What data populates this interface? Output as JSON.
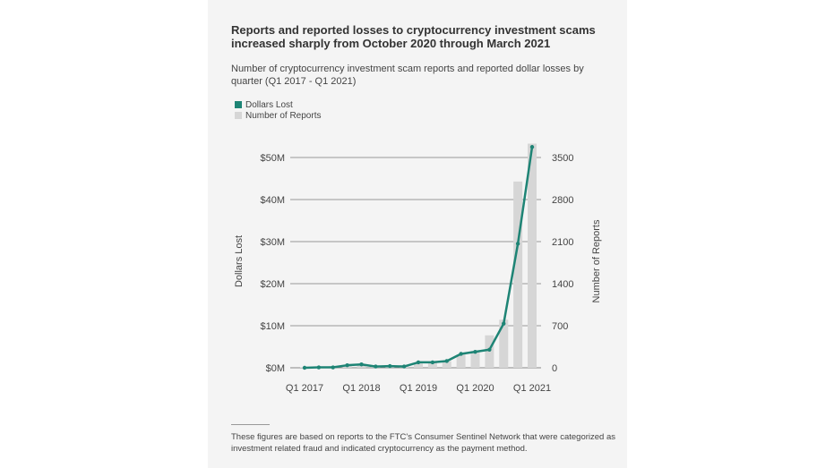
{
  "title": "Reports and reported losses to cryptocurrency investment scams increased sharply from October 2020 through March 2021",
  "subtitle": "Number of cryptocurrency investment scam reports and reported dollar losses by quarter (Q1 2017 - Q1 2021)",
  "footnote": "These figures are based on reports to the FTC's Consumer Sentinel Network that were categorized as investment related fraud and indicated cryptocurrency as the payment method.",
  "colors": {
    "line": "#1e8475",
    "bar": "#d6d6d6",
    "background": "#f4f4f4"
  },
  "chart_data": {
    "type": "bar+line",
    "categories": [
      "Q1 2017",
      "Q2 2017",
      "Q3 2017",
      "Q4 2017",
      "Q1 2018",
      "Q2 2018",
      "Q3 2018",
      "Q4 2018",
      "Q1 2019",
      "Q2 2019",
      "Q3 2019",
      "Q4 2019",
      "Q1 2020",
      "Q2 2020",
      "Q3 2020",
      "Q4 2020",
      "Q1 2021"
    ],
    "x_tick_labels": [
      "Q1 2017",
      "Q1 2018",
      "Q1 2019",
      "Q1 2020",
      "Q1 2021"
    ],
    "series": [
      {
        "name": "Dollars Lost",
        "type": "line",
        "axis": "left",
        "unit": "$M",
        "values": [
          0,
          0.1,
          0.1,
          0.6,
          0.8,
          0.3,
          0.4,
          0.3,
          1.3,
          1.3,
          1.6,
          3.3,
          3.8,
          4.3,
          10.5,
          29.5,
          52.5
        ]
      },
      {
        "name": "Number of Reports",
        "type": "bar",
        "axis": "right",
        "values": [
          10,
          12,
          25,
          40,
          60,
          40,
          35,
          45,
          70,
          90,
          110,
          220,
          280,
          540,
          800,
          3100,
          3730
        ]
      }
    ],
    "ylabel_left": "Dollars Lost",
    "ylabel_right": "Number of Reports",
    "yticks_left": [
      "$0M",
      "$10M",
      "$20M",
      "$30M",
      "$40M",
      "$50M"
    ],
    "yticks_right": [
      "0",
      "700",
      "1400",
      "2100",
      "2800",
      "3500"
    ],
    "ylim_left": [
      0,
      50
    ],
    "ylim_right": [
      0,
      3500
    ],
    "grid": true,
    "legend_position": "top-left"
  }
}
